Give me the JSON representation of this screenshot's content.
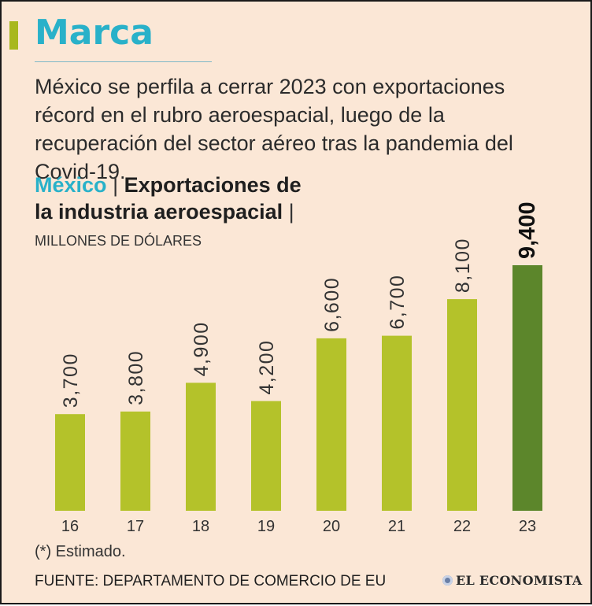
{
  "brand": {
    "title": "Marca",
    "title_color": "#29b1c9",
    "accent_color": "#a8b81e"
  },
  "subtitle": "México se perfila a cerrar 2023 con exportaciones récord en el rubro aeroespacial, luego de la recuperación del sector aéreo tras la pandemia del Covid-19.",
  "heading": {
    "country": "México",
    "separator": "|",
    "line1": "Exportaciones de",
    "line2": "la industria aeroespacial",
    "trailing_separator": "|",
    "units": "MILLONES DE DÓLARES"
  },
  "chart_data": {
    "type": "bar",
    "title": "Exportaciones de la industria aeroespacial",
    "ylabel": "Millones de dólares",
    "xlabel": "",
    "ylim": [
      0,
      9400
    ],
    "grid": false,
    "categories": [
      "16",
      "17",
      "18",
      "19",
      "20",
      "21",
      "22",
      "23"
    ],
    "values": [
      3700,
      3800,
      4900,
      4200,
      6600,
      6700,
      8100,
      9400
    ],
    "value_labels": [
      "3,700",
      "3,800",
      "4,900",
      "4,200",
      "6,600",
      "6,700",
      "8,100",
      "9,400"
    ],
    "highlight_index": 7,
    "colors": {
      "normal": "#b4c22a",
      "highlight": "#5c862b"
    }
  },
  "footnote": "(*) Estimado.",
  "source": "FUENTE: DEPARTAMENTO DE COMERCIO DE EU",
  "publisher": "EL ECONOMISTA"
}
